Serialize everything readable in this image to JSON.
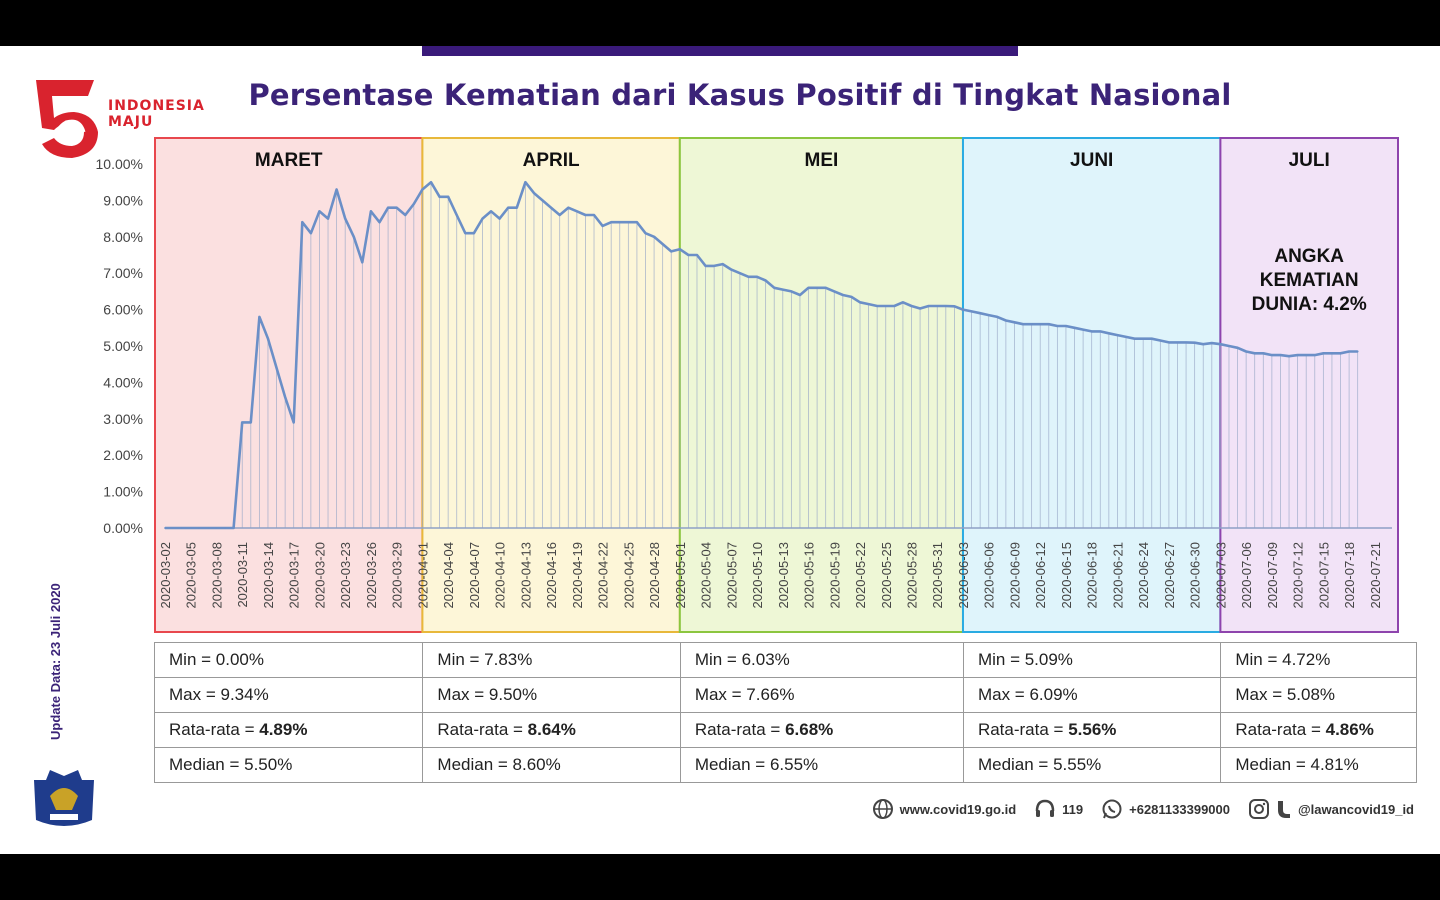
{
  "title": "Persentase Kematian dari Kasus Positif di Tingkat Nasional",
  "logo": {
    "number": "75",
    "line1": "INDONESIA",
    "line2": "MAJU"
  },
  "update_label": "Update Data: 23 Juli 2020",
  "annotation": {
    "line1": "ANGKA",
    "line2": "KEMATIAN",
    "line3": "DUNIA:  4.2%"
  },
  "footer": {
    "website": "www.covid19.go.id",
    "hotline": "119",
    "whatsapp": "+6281133399000",
    "social": "@lawancovid19_id"
  },
  "colors": {
    "maret": "#e8474d",
    "april": "#e8b83a",
    "mei": "#8cc63f",
    "juni": "#29abe2",
    "juli": "#8e44ad",
    "line": "#6b8fc7"
  },
  "months": [
    {
      "label": "MARET",
      "start": "2020-03-02",
      "end": "2020-04-01",
      "min": "Min = 0.00%",
      "max": "Max = 9.34%",
      "avg_label": "Rata-rata = ",
      "avg": "4.89%",
      "median": "Median = 5.50%"
    },
    {
      "label": "APRIL",
      "start": "2020-04-01",
      "end": "2020-05-01",
      "min": "Min = 7.83%",
      "max": "Max = 9.50%",
      "avg_label": "Rata-rata = ",
      "avg": "8.64%",
      "median": "Median = 8.60%"
    },
    {
      "label": "MEI",
      "start": "2020-05-01",
      "end": "2020-06-03",
      "min": "Min = 6.03%",
      "max": "Max = 7.66%",
      "avg_label": "Rata-rata = ",
      "avg": "6.68%",
      "median": "Median = 6.55%"
    },
    {
      "label": "JUNI",
      "start": "2020-06-03",
      "end": "2020-07-03",
      "min": "Min = 5.09%",
      "max": "Max = 6.09%",
      "avg_label": "Rata-rata = ",
      "avg": "5.56%",
      "median": "Median = 5.55%"
    },
    {
      "label": "JULI",
      "start": "2020-07-03",
      "end": "2020-07-23",
      "min": "Min = 4.72%",
      "max": "Max = 5.08%",
      "avg_label": "Rata-rata = ",
      "avg": "4.86%",
      "median": "Median = 4.81%"
    }
  ],
  "chart_data": {
    "type": "line",
    "title": "Persentase Kematian dari Kasus Positif di Tingkat Nasional",
    "xlabel": "",
    "ylabel": "",
    "ylim": [
      0,
      10
    ],
    "yticks": [
      "0.00%",
      "1.00%",
      "2.00%",
      "3.00%",
      "4.00%",
      "5.00%",
      "6.00%",
      "7.00%",
      "8.00%",
      "9.00%",
      "10.00%"
    ],
    "x_start": "2020-03-02",
    "x_end": "2020-07-23",
    "xticks": [
      "2020-03-02",
      "2020-03-05",
      "2020-03-08",
      "2020-03-11",
      "2020-03-14",
      "2020-03-17",
      "2020-03-20",
      "2020-03-23",
      "2020-03-26",
      "2020-03-29",
      "2020-04-01",
      "2020-04-04",
      "2020-04-07",
      "2020-04-10",
      "2020-04-13",
      "2020-04-16",
      "2020-04-19",
      "2020-04-22",
      "2020-04-25",
      "2020-04-28",
      "2020-05-01",
      "2020-05-04",
      "2020-05-07",
      "2020-05-10",
      "2020-05-13",
      "2020-05-16",
      "2020-05-19",
      "2020-05-22",
      "2020-05-25",
      "2020-05-28",
      "2020-05-31",
      "2020-06-03",
      "2020-06-06",
      "2020-06-09",
      "2020-06-12",
      "2020-06-15",
      "2020-06-18",
      "2020-06-21",
      "2020-06-24",
      "2020-06-27",
      "2020-06-30",
      "2020-07-03",
      "2020-07-06",
      "2020-07-09",
      "2020-07-12",
      "2020-07-15",
      "2020-07-18",
      "2020-07-21"
    ],
    "grid": false,
    "series": [
      {
        "values": [
          0,
          0,
          0,
          0,
          0,
          0,
          0,
          0,
          0,
          2.9,
          2.9,
          5.8,
          5.2,
          4.4,
          3.6,
          2.9,
          8.4,
          8.1,
          8.7,
          8.5,
          9.3,
          8.5,
          8.0,
          7.3,
          8.7,
          8.4,
          8.8,
          8.8,
          8.6,
          8.9,
          9.3,
          9.5,
          9.1,
          9.1,
          8.6,
          8.1,
          8.1,
          8.5,
          8.7,
          8.5,
          8.8,
          8.8,
          9.5,
          9.2,
          9.0,
          8.8,
          8.6,
          8.8,
          8.7,
          8.6,
          8.6,
          8.3,
          8.4,
          8.4,
          8.4,
          8.4,
          8.1,
          8.0,
          7.8,
          7.6,
          7.66,
          7.5,
          7.5,
          7.2,
          7.2,
          7.25,
          7.1,
          7.0,
          6.9,
          6.9,
          6.8,
          6.6,
          6.55,
          6.5,
          6.4,
          6.6,
          6.6,
          6.6,
          6.5,
          6.4,
          6.35,
          6.2,
          6.15,
          6.1,
          6.1,
          6.1,
          6.2,
          6.1,
          6.03,
          6.1,
          6.1,
          6.1,
          6.09,
          6.0,
          5.95,
          5.9,
          5.85,
          5.8,
          5.7,
          5.65,
          5.6,
          5.6,
          5.6,
          5.6,
          5.55,
          5.55,
          5.5,
          5.45,
          5.4,
          5.4,
          5.35,
          5.3,
          5.25,
          5.2,
          5.2,
          5.2,
          5.15,
          5.1,
          5.1,
          5.1,
          5.09,
          5.05,
          5.08,
          5.05,
          5.0,
          4.95,
          4.85,
          4.8,
          4.8,
          4.75,
          4.75,
          4.72,
          4.75,
          4.75,
          4.75,
          4.8,
          4.8,
          4.8,
          4.85,
          4.85
        ]
      }
    ]
  }
}
